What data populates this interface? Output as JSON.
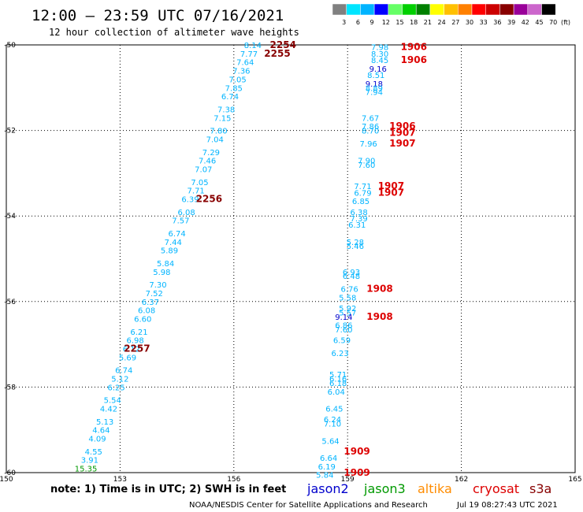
{
  "title": "12:00 — 23:59 UTC 07/16/2021",
  "subtitle": "12 hour collection of altimeter wave heights",
  "note": "note: 1) Time is in UTC; 2) SWH is in feet",
  "credit": "NOAA/NESDIS Center for Satellite Applications and Research",
  "timestamp": "Jul 19 08:27:43 UTC 2021",
  "satellites": [
    {
      "name": "jason2",
      "color": "#0000cc"
    },
    {
      "name": "jason3",
      "color": "#009900"
    },
    {
      "name": "altika",
      "color": "#ff8c00"
    },
    {
      "name": "cryosat",
      "color": "#dd0000"
    },
    {
      "name": "s3a",
      "color": "#880000"
    }
  ],
  "colorbar": {
    "unit": "(ft)",
    "labels": [
      "3",
      "6",
      "9",
      "12",
      "15",
      "18",
      "21",
      "24",
      "27",
      "30",
      "33",
      "36",
      "39",
      "42",
      "45",
      "70"
    ],
    "colors": [
      "#808080",
      "#00e5ff",
      "#00b4ff",
      "#0000ff",
      "#66ff66",
      "#00d000",
      "#008000",
      "#ffff00",
      "#ffc000",
      "#ff8000",
      "#ff0000",
      "#cc0000",
      "#880000",
      "#990099",
      "#cc66cc",
      "#000000"
    ]
  },
  "chart_data": {
    "type": "scatter",
    "xlim": [
      150,
      165
    ],
    "ylim": [
      -60,
      -50
    ],
    "x_ticks": [
      "150",
      "153",
      "156",
      "159",
      "162",
      "165"
    ],
    "y_ticks": [
      "-50",
      "-52",
      "-54",
      "-56",
      "-58",
      "-60"
    ],
    "grid": true,
    "tracks": [
      {
        "satellite": "s3a",
        "pass_labels": [
          {
            "text": "2254",
            "lon": 156.95,
            "lat": -50.0
          },
          {
            "text": "2255",
            "lon": 156.8,
            "lat": -50.2
          },
          {
            "text": "2256",
            "lon": 155.0,
            "lat": -53.6
          },
          {
            "text": "2257",
            "lon": 153.1,
            "lat": -57.1
          }
        ],
        "points": [
          {
            "lon": 156.5,
            "lat": -50.0,
            "swh": "8.14"
          },
          {
            "lon": 156.4,
            "lat": -50.2,
            "swh": "7.77"
          },
          {
            "lon": 156.3,
            "lat": -50.4,
            "swh": "7.64"
          },
          {
            "lon": 156.2,
            "lat": -50.6,
            "swh": "7.36"
          },
          {
            "lon": 156.1,
            "lat": -50.8,
            "swh": "7.05"
          },
          {
            "lon": 156.0,
            "lat": -51.0,
            "swh": "7.85"
          },
          {
            "lon": 155.9,
            "lat": -51.2,
            "swh": "6.74"
          },
          {
            "lon": 155.8,
            "lat": -51.5,
            "swh": "7.38"
          },
          {
            "lon": 155.7,
            "lat": -51.7,
            "swh": "7.15"
          },
          {
            "lon": 155.6,
            "lat": -52.0,
            "swh": "7.80"
          },
          {
            "lon": 155.5,
            "lat": -52.2,
            "swh": "7.04"
          },
          {
            "lon": 155.4,
            "lat": -52.5,
            "swh": "7.29"
          },
          {
            "lon": 155.3,
            "lat": -52.7,
            "swh": "7.46"
          },
          {
            "lon": 155.2,
            "lat": -52.9,
            "swh": "7.07"
          },
          {
            "lon": 155.1,
            "lat": -53.2,
            "swh": "7.05"
          },
          {
            "lon": 155.0,
            "lat": -53.4,
            "swh": "7.71"
          },
          {
            "lon": 154.85,
            "lat": -53.6,
            "swh": "6.39"
          },
          {
            "lon": 154.75,
            "lat": -53.9,
            "swh": "6.08"
          },
          {
            "lon": 154.6,
            "lat": -54.1,
            "swh": "7.57"
          },
          {
            "lon": 154.5,
            "lat": -54.4,
            "swh": "6.74"
          },
          {
            "lon": 154.4,
            "lat": -54.6,
            "swh": "7.44"
          },
          {
            "lon": 154.3,
            "lat": -54.8,
            "swh": "5.89"
          },
          {
            "lon": 154.2,
            "lat": -55.1,
            "swh": "5.84"
          },
          {
            "lon": 154.1,
            "lat": -55.3,
            "swh": "5.98"
          },
          {
            "lon": 154.0,
            "lat": -55.6,
            "swh": "7.30"
          },
          {
            "lon": 153.9,
            "lat": -55.8,
            "swh": "7.52"
          },
          {
            "lon": 153.8,
            "lat": -56.0,
            "swh": "6.37"
          },
          {
            "lon": 153.7,
            "lat": -56.2,
            "swh": "6.08"
          },
          {
            "lon": 153.6,
            "lat": -56.4,
            "swh": "6.60"
          },
          {
            "lon": 153.5,
            "lat": -56.7,
            "swh": "6.21"
          },
          {
            "lon": 153.4,
            "lat": -56.9,
            "swh": "6.98"
          },
          {
            "lon": 153.3,
            "lat": -57.1,
            "swh": "6.12"
          },
          {
            "lon": 153.2,
            "lat": -57.3,
            "swh": "5.69"
          },
          {
            "lon": 153.1,
            "lat": -57.6,
            "swh": "6.74"
          },
          {
            "lon": 153.0,
            "lat": -57.8,
            "swh": "5.12"
          },
          {
            "lon": 152.9,
            "lat": -58.0,
            "swh": "6.25"
          },
          {
            "lon": 152.8,
            "lat": -58.3,
            "swh": "5.54"
          },
          {
            "lon": 152.7,
            "lat": -58.5,
            "swh": "4.42"
          },
          {
            "lon": 152.6,
            "lat": -58.8,
            "swh": "5.13"
          },
          {
            "lon": 152.5,
            "lat": -59.0,
            "swh": "4.64"
          },
          {
            "lon": 152.4,
            "lat": -59.2,
            "swh": "4.09"
          },
          {
            "lon": 152.3,
            "lat": -59.5,
            "swh": "4.55"
          },
          {
            "lon": 152.2,
            "lat": -59.7,
            "swh": "3.91"
          },
          {
            "lon": 152.1,
            "lat": -59.9,
            "swh": "15.35"
          }
        ]
      },
      {
        "satellite": "cryosat",
        "pass_labels": [
          {
            "text": "1906",
            "lon": 160.4,
            "lat": -50.05
          },
          {
            "text": "1906",
            "lon": 160.4,
            "lat": -50.35
          },
          {
            "text": "1906",
            "lon": 160.1,
            "lat": -51.9
          },
          {
            "text": "1907",
            "lon": 160.1,
            "lat": -52.05
          },
          {
            "text": "1907",
            "lon": 160.1,
            "lat": -52.3
          },
          {
            "text": "1907",
            "lon": 159.8,
            "lat": -53.3
          },
          {
            "text": "1907",
            "lon": 159.8,
            "lat": -53.45
          },
          {
            "text": "1908",
            "lon": 159.5,
            "lat": -55.7
          },
          {
            "text": "1908",
            "lon": 159.5,
            "lat": -56.35
          },
          {
            "text": "1909",
            "lon": 158.9,
            "lat": -59.5
          },
          {
            "text": "1909",
            "lon": 158.9,
            "lat": -60.0
          }
        ],
        "points": [
          {
            "lon": 159.85,
            "lat": -50.05,
            "swh": "7.98"
          },
          {
            "lon": 159.85,
            "lat": -50.2,
            "swh": "8.30"
          },
          {
            "lon": 159.85,
            "lat": -50.35,
            "swh": "8.45"
          },
          {
            "lon": 159.8,
            "lat": -50.55,
            "swh": "9.16"
          },
          {
            "lon": 159.75,
            "lat": -50.7,
            "swh": "8.51"
          },
          {
            "lon": 159.7,
            "lat": -50.9,
            "swh": "9.18"
          },
          {
            "lon": 159.7,
            "lat": -51.0,
            "swh": "8.89"
          },
          {
            "lon": 159.7,
            "lat": -51.1,
            "swh": "7.94"
          },
          {
            "lon": 159.6,
            "lat": -51.7,
            "swh": "7.67"
          },
          {
            "lon": 159.6,
            "lat": -51.9,
            "swh": "7.86"
          },
          {
            "lon": 159.6,
            "lat": -52.0,
            "swh": "8.70"
          },
          {
            "lon": 159.55,
            "lat": -52.3,
            "swh": "7.96"
          },
          {
            "lon": 159.5,
            "lat": -52.7,
            "swh": "7.90"
          },
          {
            "lon": 159.5,
            "lat": -52.8,
            "swh": "7.60"
          },
          {
            "lon": 159.4,
            "lat": -53.3,
            "swh": "7.71"
          },
          {
            "lon": 159.4,
            "lat": -53.45,
            "swh": "6.79"
          },
          {
            "lon": 159.35,
            "lat": -53.65,
            "swh": "6.85"
          },
          {
            "lon": 159.3,
            "lat": -53.9,
            "swh": "6.38"
          },
          {
            "lon": 159.3,
            "lat": -54.05,
            "swh": "7.39"
          },
          {
            "lon": 159.25,
            "lat": -54.2,
            "swh": "6.31"
          },
          {
            "lon": 159.2,
            "lat": -54.6,
            "swh": "5.28"
          },
          {
            "lon": 159.2,
            "lat": -54.7,
            "swh": "5.46"
          },
          {
            "lon": 159.1,
            "lat": -55.3,
            "swh": "6.93"
          },
          {
            "lon": 159.1,
            "lat": -55.4,
            "swh": "6.48"
          },
          {
            "lon": 159.05,
            "lat": -55.7,
            "swh": "6.76"
          },
          {
            "lon": 159.0,
            "lat": -55.9,
            "swh": "5.58"
          },
          {
            "lon": 159.0,
            "lat": -56.15,
            "swh": "5.92"
          },
          {
            "lon": 159.0,
            "lat": -56.25,
            "swh": "5.57"
          },
          {
            "lon": 158.9,
            "lat": -56.35,
            "swh": "9.14"
          },
          {
            "lon": 158.9,
            "lat": -56.55,
            "swh": "6.86"
          },
          {
            "lon": 158.9,
            "lat": -56.65,
            "swh": "7.60"
          },
          {
            "lon": 158.85,
            "lat": -56.9,
            "swh": "6.59"
          },
          {
            "lon": 158.8,
            "lat": -57.2,
            "swh": "6.23"
          },
          {
            "lon": 158.75,
            "lat": -57.7,
            "swh": "5.71"
          },
          {
            "lon": 158.75,
            "lat": -57.8,
            "swh": "6.16"
          },
          {
            "lon": 158.75,
            "lat": -57.9,
            "swh": "6.18"
          },
          {
            "lon": 158.7,
            "lat": -58.1,
            "swh": "6.04"
          },
          {
            "lon": 158.65,
            "lat": -58.5,
            "swh": "6.45"
          },
          {
            "lon": 158.6,
            "lat": -58.75,
            "swh": "6.24"
          },
          {
            "lon": 158.6,
            "lat": -58.85,
            "swh": "7.10"
          },
          {
            "lon": 158.55,
            "lat": -59.25,
            "swh": "5.64"
          },
          {
            "lon": 158.5,
            "lat": -59.65,
            "swh": "6.64"
          },
          {
            "lon": 158.45,
            "lat": -59.85,
            "swh": "6.19"
          },
          {
            "lon": 158.4,
            "lat": -60.05,
            "swh": "5.84"
          }
        ]
      }
    ]
  }
}
